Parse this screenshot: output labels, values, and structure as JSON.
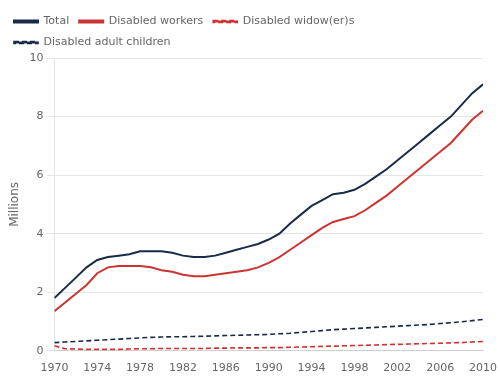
{
  "chart_data": {
    "type": "line",
    "ylabel": "Millions",
    "x": [
      1970,
      1971,
      1972,
      1973,
      1974,
      1975,
      1976,
      1977,
      1978,
      1979,
      1980,
      1981,
      1982,
      1983,
      1984,
      1985,
      1986,
      1987,
      1988,
      1989,
      1990,
      1991,
      1992,
      1993,
      1994,
      1995,
      1996,
      1997,
      1998,
      1999,
      2000,
      2001,
      2002,
      2003,
      2004,
      2005,
      2006,
      2007,
      2008,
      2009,
      2010
    ],
    "series": [
      {
        "name": "Total",
        "color": "#1a2a4a",
        "line_style": "solid",
        "values": [
          1.8,
          2.15,
          2.5,
          2.85,
          3.1,
          3.2,
          3.25,
          3.3,
          3.4,
          3.4,
          3.4,
          3.35,
          3.25,
          3.2,
          3.2,
          3.25,
          3.35,
          3.45,
          3.55,
          3.65,
          3.8,
          4.0,
          4.35,
          4.65,
          4.95,
          5.15,
          5.35,
          5.4,
          5.5,
          5.7,
          5.95,
          6.2,
          6.5,
          6.8,
          7.1,
          7.4,
          7.7,
          8.0,
          8.4,
          8.8,
          9.1
        ]
      },
      {
        "name": "Disabled workers",
        "color": "#cc3333",
        "line_style": "solid",
        "values": [
          1.35,
          1.65,
          1.95,
          2.25,
          2.65,
          2.85,
          2.9,
          2.9,
          2.9,
          2.85,
          2.75,
          2.7,
          2.6,
          2.55,
          2.55,
          2.6,
          2.65,
          2.7,
          2.75,
          2.85,
          3.0,
          3.2,
          3.45,
          3.7,
          3.95,
          4.2,
          4.4,
          4.5,
          4.6,
          4.8,
          5.05,
          5.3,
          5.6,
          5.9,
          6.2,
          6.5,
          6.8,
          7.1,
          7.5,
          7.9,
          8.2
        ]
      },
      {
        "name": "Disabled widow(er)s",
        "color": "#cc3333",
        "line_style": "dashed",
        "values": [
          0.17,
          0.07,
          0.06,
          0.05,
          0.05,
          0.05,
          0.05,
          0.06,
          0.07,
          0.07,
          0.08,
          0.08,
          0.08,
          0.08,
          0.08,
          0.09,
          0.09,
          0.1,
          0.1,
          0.1,
          0.11,
          0.11,
          0.12,
          0.13,
          0.14,
          0.15,
          0.16,
          0.17,
          0.18,
          0.19,
          0.2,
          0.21,
          0.22,
          0.23,
          0.24,
          0.25,
          0.26,
          0.27,
          0.28,
          0.3,
          0.32
        ]
      },
      {
        "name": "Disabled adult children",
        "color": "#1a2a4a",
        "line_style": "dashed",
        "values": [
          0.28,
          0.3,
          0.32,
          0.34,
          0.36,
          0.38,
          0.4,
          0.42,
          0.44,
          0.46,
          0.47,
          0.48,
          0.48,
          0.49,
          0.5,
          0.51,
          0.52,
          0.53,
          0.54,
          0.55,
          0.56,
          0.58,
          0.6,
          0.63,
          0.66,
          0.69,
          0.72,
          0.74,
          0.76,
          0.78,
          0.8,
          0.82,
          0.84,
          0.86,
          0.88,
          0.9,
          0.93,
          0.96,
          0.99,
          1.03,
          1.07
        ]
      }
    ],
    "xlim": [
      1970,
      2010
    ],
    "xticks": [
      1970,
      1974,
      1978,
      1982,
      1986,
      1990,
      1994,
      1998,
      2002,
      2006,
      2010
    ],
    "ylim": [
      0,
      10
    ],
    "yticks": [
      0,
      2,
      4,
      6,
      8,
      10
    ],
    "grid": "y",
    "legend": "upper left"
  }
}
